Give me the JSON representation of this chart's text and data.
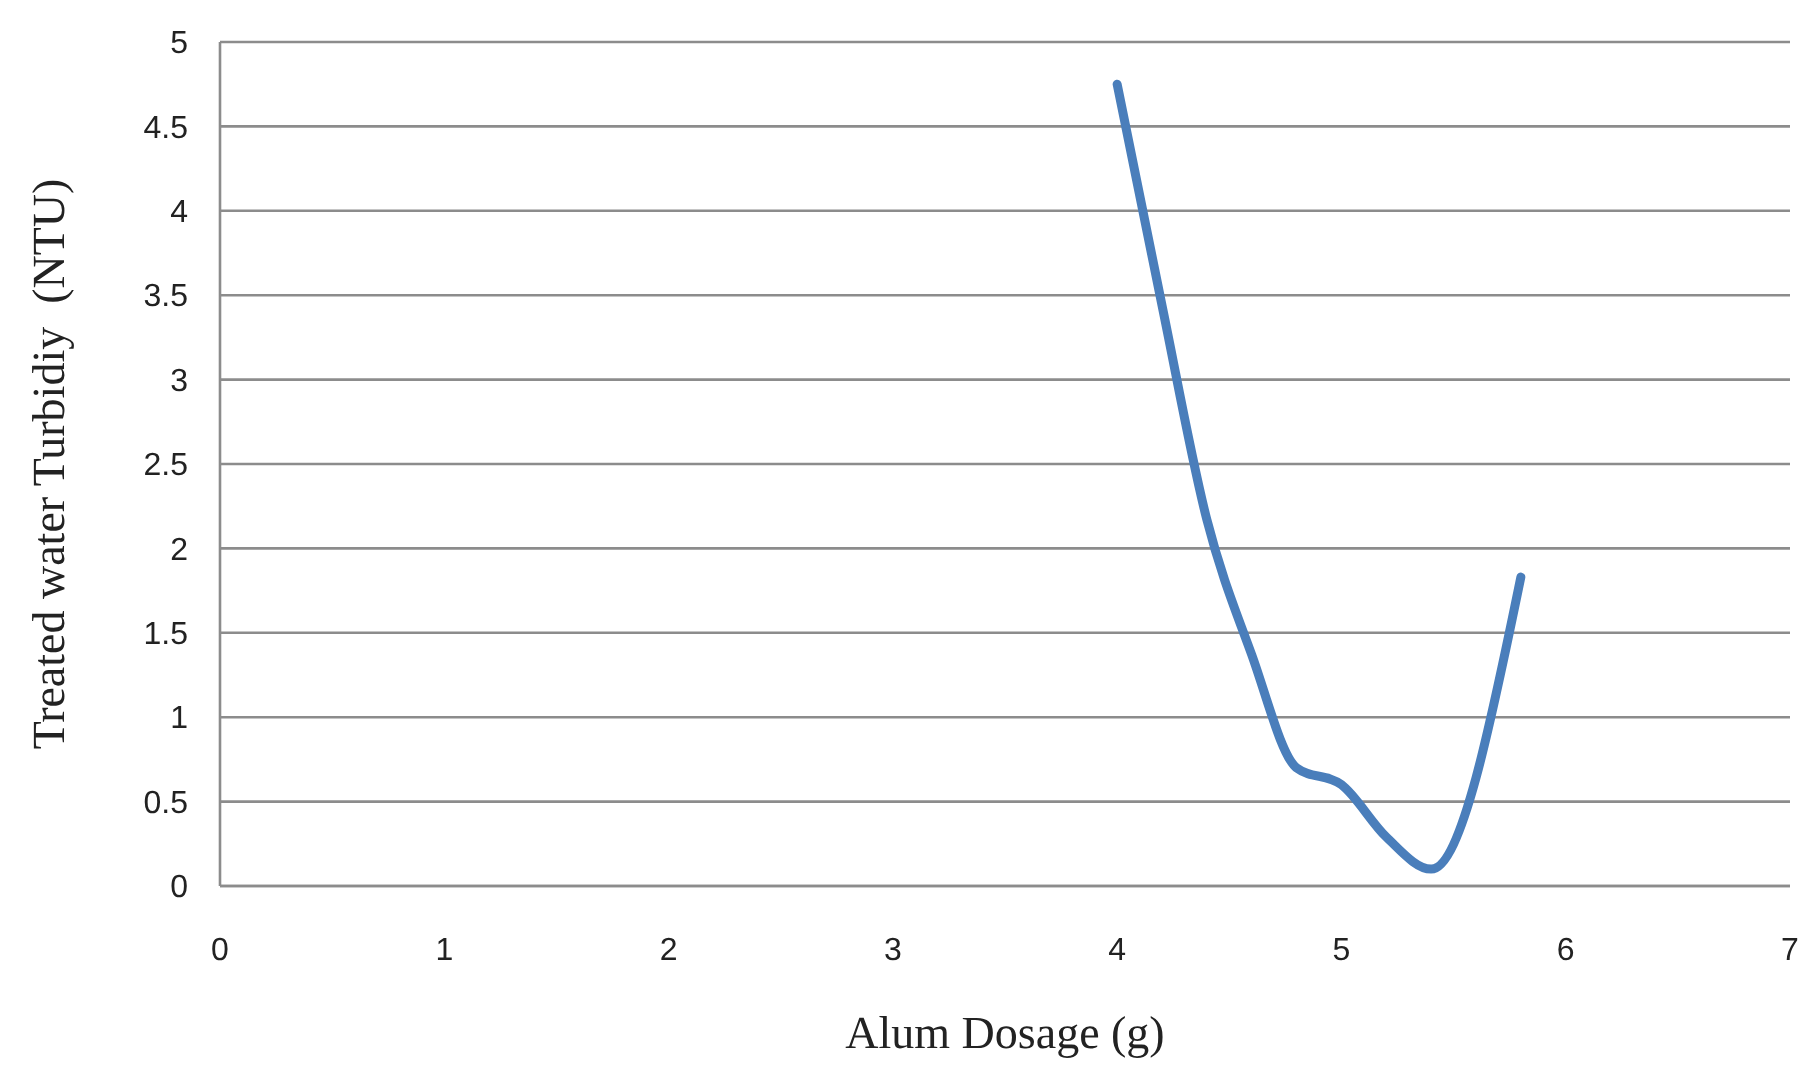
{
  "chart_data": {
    "type": "line",
    "xlabel": "Alum Dosage (g)",
    "ylabel": "Treated water Turbidiy  (NTU)",
    "x": [
      4,
      4.2,
      4.4,
      4.6,
      4.8,
      5,
      5.2,
      5.4,
      5.8
    ],
    "series": [
      {
        "color": "#4a7ebb",
        "values": [
          4.75,
          3.44,
          2.17,
          1.37,
          0.7,
          0.6,
          0.29,
          0.1,
          1.83
        ]
      }
    ],
    "xlim": [
      0,
      7
    ],
    "xticks": [
      0,
      1,
      2,
      3,
      4,
      5,
      6,
      7
    ],
    "ylim": [
      0,
      5
    ],
    "yticks": [
      0,
      0.5,
      1,
      1.5,
      2,
      2.5,
      3,
      3.5,
      4,
      4.5,
      5
    ],
    "grid": "y",
    "marker": "none",
    "line_style": "solid"
  }
}
